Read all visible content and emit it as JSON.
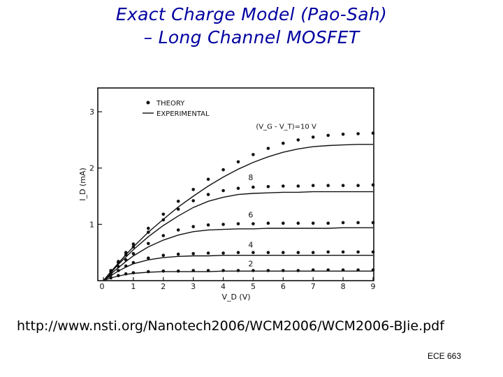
{
  "slide": {
    "title_line1": "Exact Charge Model (Pao-Sah)",
    "title_line2": "– Long Channel MOSFET",
    "url": "http://www.nsti.org/Nanotech2006/WCM2006/WCM2006-BJie.pdf",
    "footer": "ECE 663"
  },
  "chart_data": {
    "type": "line",
    "title": "",
    "xlabel": "V_D (V)",
    "ylabel": "I_D (mA)",
    "xlim": [
      0,
      9
    ],
    "ylim": [
      0,
      3.1
    ],
    "x_ticks": [
      "0",
      "1",
      "2",
      "3",
      "4",
      "5",
      "6",
      "7",
      "8",
      "9"
    ],
    "y_ticks": [
      "1",
      "2",
      "3"
    ],
    "legend": {
      "placement": "top-left",
      "entries": [
        {
          "label": "THEORY",
          "marker": "dots"
        },
        {
          "label": "EXPERIMENTAL",
          "marker": "line"
        }
      ]
    },
    "x": [
      0,
      0.25,
      0.5,
      0.75,
      1,
      1.5,
      2,
      2.5,
      3,
      3.5,
      4,
      4.5,
      5,
      5.5,
      6,
      6.5,
      7,
      7.5,
      8,
      8.5,
      9
    ],
    "series": [
      {
        "name": "(V_G - V_T)=10 V",
        "label": "(V_G - V_T)=10 V",
        "theory": [
          0,
          0.18,
          0.34,
          0.5,
          0.65,
          0.93,
          1.18,
          1.41,
          1.62,
          1.8,
          1.97,
          2.11,
          2.24,
          2.35,
          2.44,
          2.5,
          2.55,
          2.58,
          2.6,
          2.61,
          2.62
        ],
        "experimental": [
          0,
          0.16,
          0.31,
          0.46,
          0.6,
          0.86,
          1.09,
          1.31,
          1.5,
          1.68,
          1.84,
          1.98,
          2.1,
          2.2,
          2.28,
          2.34,
          2.38,
          2.4,
          2.41,
          2.42,
          2.42
        ]
      },
      {
        "name": "8",
        "label": "8",
        "theory": [
          0,
          0.16,
          0.32,
          0.46,
          0.6,
          0.86,
          1.08,
          1.27,
          1.42,
          1.53,
          1.6,
          1.64,
          1.66,
          1.67,
          1.68,
          1.68,
          1.69,
          1.69,
          1.69,
          1.69,
          1.7
        ],
        "experimental": [
          0,
          0.14,
          0.29,
          0.42,
          0.55,
          0.78,
          0.98,
          1.15,
          1.3,
          1.41,
          1.48,
          1.53,
          1.55,
          1.56,
          1.57,
          1.57,
          1.58,
          1.58,
          1.58,
          1.58,
          1.58
        ]
      },
      {
        "name": "6",
        "label": "6",
        "theory": [
          0,
          0.13,
          0.25,
          0.37,
          0.48,
          0.66,
          0.8,
          0.9,
          0.96,
          0.99,
          1.0,
          1.01,
          1.01,
          1.02,
          1.02,
          1.02,
          1.02,
          1.02,
          1.03,
          1.03,
          1.03
        ],
        "experimental": [
          0,
          0.12,
          0.23,
          0.34,
          0.44,
          0.6,
          0.72,
          0.81,
          0.87,
          0.9,
          0.91,
          0.92,
          0.92,
          0.93,
          0.93,
          0.93,
          0.93,
          0.93,
          0.94,
          0.94,
          0.94
        ]
      },
      {
        "name": "4",
        "label": "4",
        "theory": [
          0,
          0.1,
          0.18,
          0.26,
          0.32,
          0.4,
          0.45,
          0.47,
          0.48,
          0.49,
          0.49,
          0.5,
          0.5,
          0.5,
          0.5,
          0.5,
          0.5,
          0.51,
          0.51,
          0.51,
          0.51
        ],
        "experimental": [
          0,
          0.09,
          0.17,
          0.24,
          0.3,
          0.37,
          0.41,
          0.43,
          0.44,
          0.44,
          0.45,
          0.45,
          0.45,
          0.45,
          0.45,
          0.45,
          0.45,
          0.45,
          0.45,
          0.45,
          0.45
        ]
      },
      {
        "name": "2",
        "label": "2",
        "theory": [
          0,
          0.05,
          0.09,
          0.12,
          0.14,
          0.16,
          0.17,
          0.17,
          0.18,
          0.18,
          0.18,
          0.18,
          0.18,
          0.18,
          0.18,
          0.18,
          0.19,
          0.19,
          0.19,
          0.19,
          0.19
        ],
        "experimental": [
          0,
          0.05,
          0.08,
          0.11,
          0.13,
          0.15,
          0.16,
          0.16,
          0.16,
          0.16,
          0.17,
          0.17,
          0.17,
          0.17,
          0.17,
          0.17,
          0.17,
          0.17,
          0.17,
          0.17,
          0.17
        ]
      }
    ],
    "grid": false,
    "colors": {
      "ink": "#111111",
      "title": "#0000a0"
    }
  }
}
